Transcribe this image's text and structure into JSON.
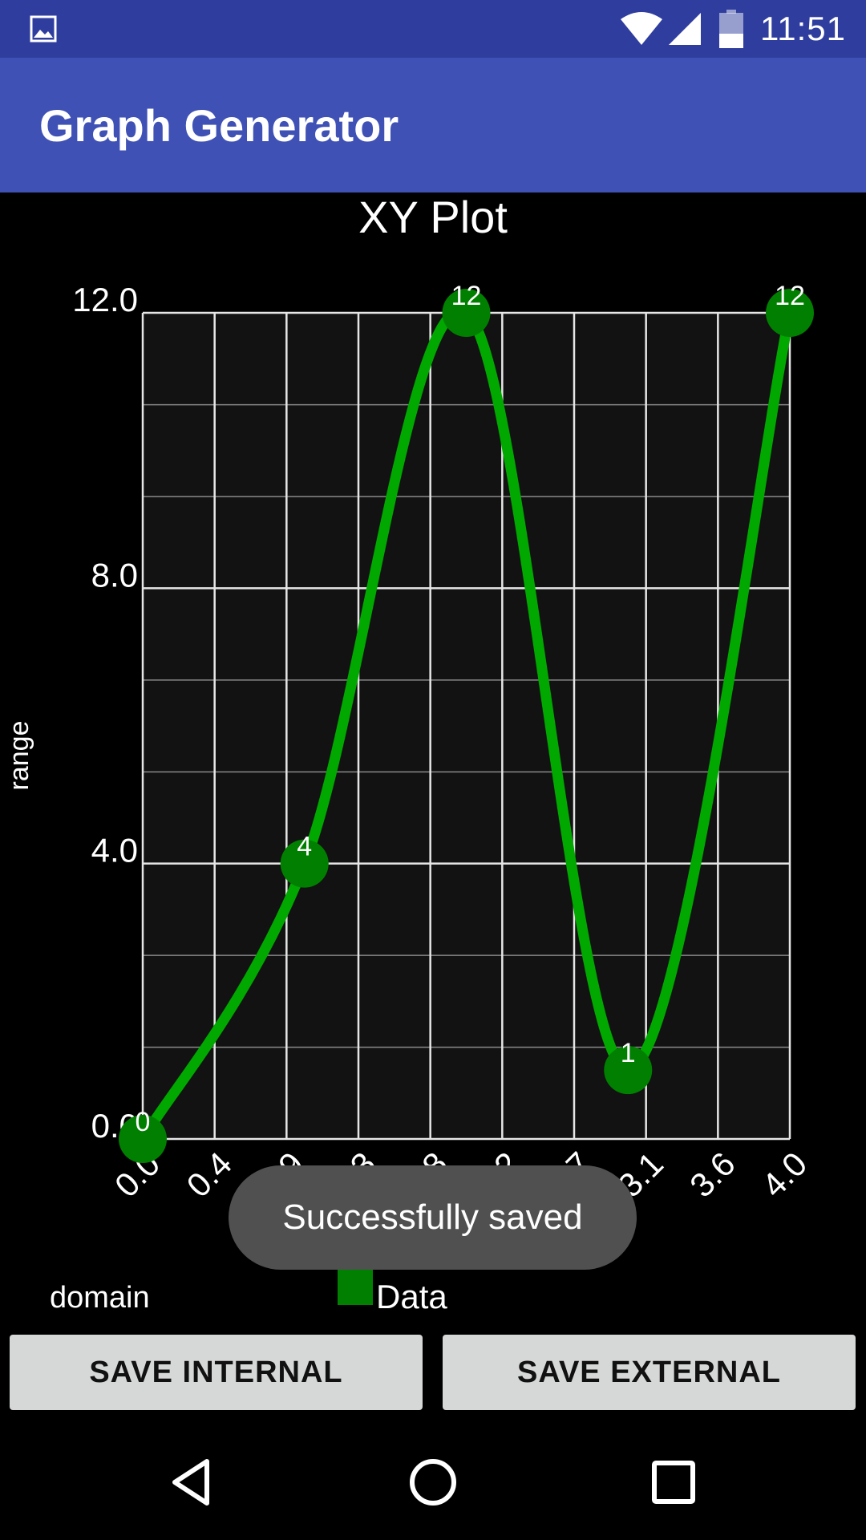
{
  "status_bar": {
    "time": "11:51",
    "icons": [
      "gallery-notification-icon",
      "wifi-icon",
      "cell-signal-icon",
      "battery-icon"
    ]
  },
  "app_bar": {
    "title": "Graph Generator"
  },
  "colors": {
    "status_bar": "#2f3e9e",
    "app_bar": "#3f51b5",
    "plot_background": "#121212",
    "line": "#00a800",
    "point": "#007f00",
    "legend_swatch": "#007f00",
    "toast": "#505050",
    "button": "#d6d7d7"
  },
  "chart_data": {
    "type": "line",
    "title": "XY Plot",
    "xlabel": "domain",
    "ylabel": "range",
    "xlim": [
      0.0,
      4.0
    ],
    "ylim": [
      0.0,
      12.0
    ],
    "x_ticks": [
      "0.0",
      "0.4",
      "0.9",
      "1.3",
      "1.8",
      "2.2",
      "2.7",
      "3.1",
      "3.6",
      "4.0"
    ],
    "y_ticks": [
      "0.0",
      "4.0",
      "8.0",
      "12.0"
    ],
    "y_minor_step": 1.333,
    "grid": true,
    "smooth": true,
    "legend_position": "bottom",
    "series": [
      {
        "name": "Data",
        "points": [
          {
            "x": 0.0,
            "y": 0,
            "label": "0"
          },
          {
            "x": 1.0,
            "y": 4,
            "label": "4"
          },
          {
            "x": 2.0,
            "y": 12,
            "label": "12"
          },
          {
            "x": 3.0,
            "y": 1,
            "label": "1"
          },
          {
            "x": 4.0,
            "y": 12,
            "label": "12"
          }
        ]
      }
    ]
  },
  "toast": {
    "message": "Successfully saved"
  },
  "buttons": {
    "save_internal": "SAVE INTERNAL",
    "save_external": "SAVE EXTERNAL"
  },
  "nav_bar": {
    "icons": [
      "back-icon",
      "home-icon",
      "recents-icon"
    ]
  }
}
